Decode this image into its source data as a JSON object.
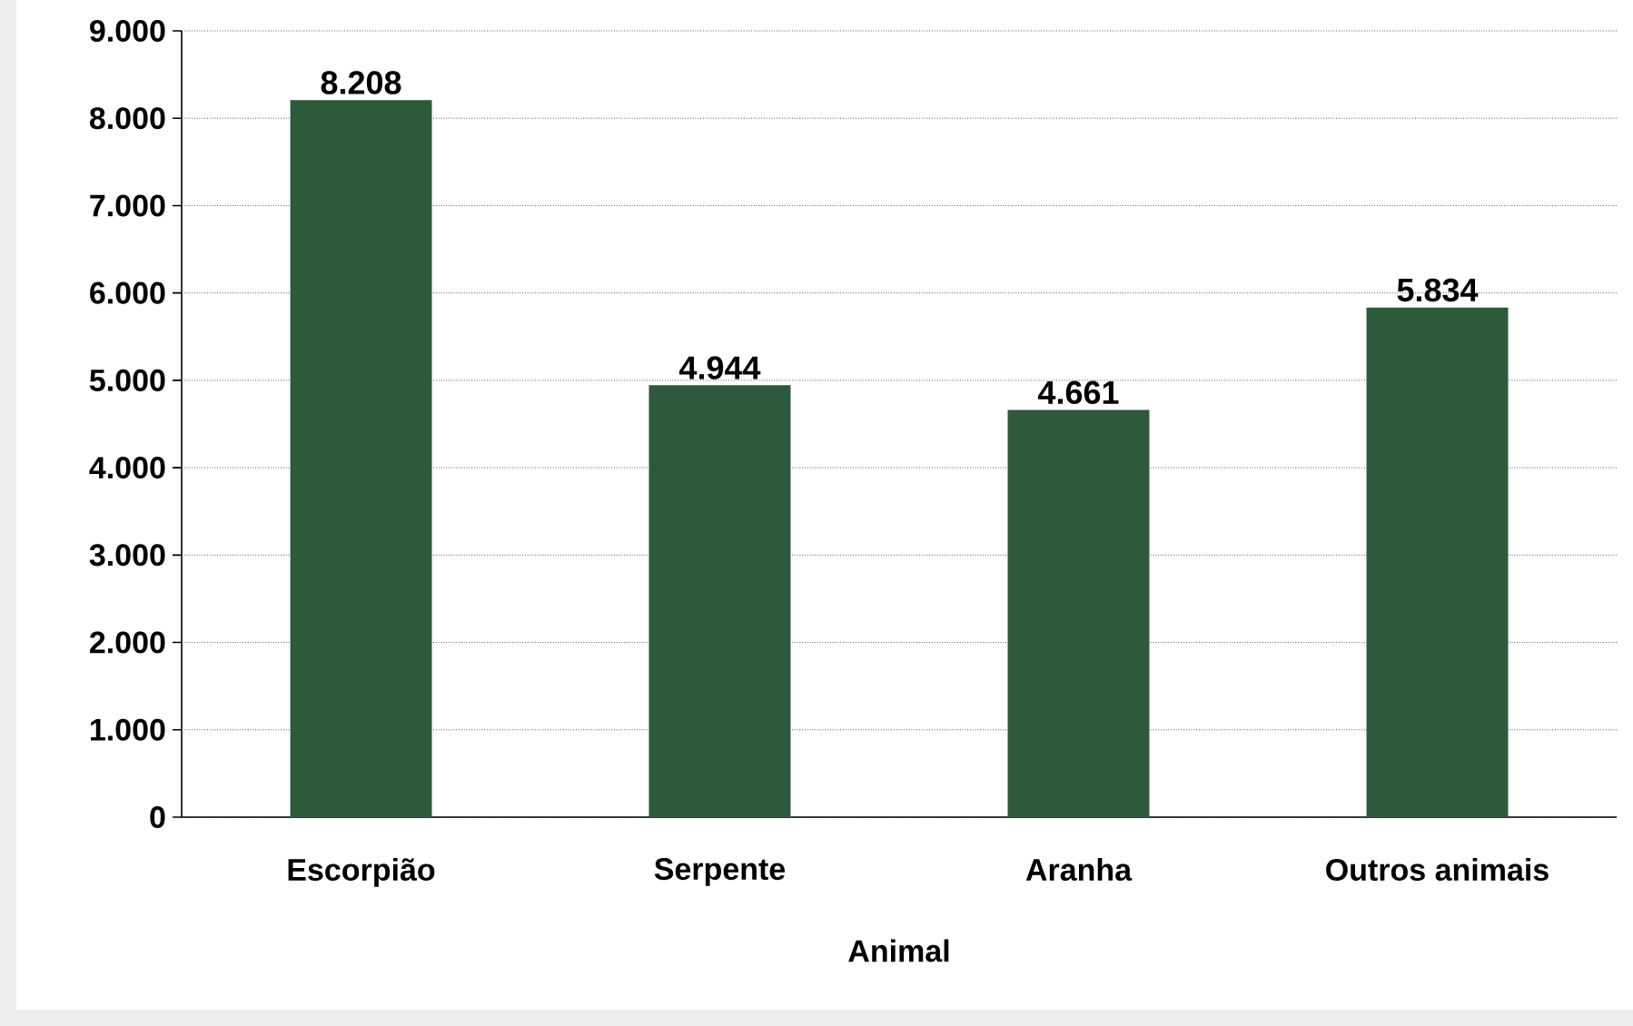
{
  "chart_data": {
    "type": "bar",
    "xlabel": "Animal",
    "categories": [
      "Escorpião",
      "Serpente",
      "Aranha",
      "Outros animais"
    ],
    "values": [
      8208,
      4944,
      4661,
      5834
    ],
    "value_labels": [
      "8.208",
      "4.944",
      "4.661",
      "5.834"
    ],
    "color": "#2e5a3c",
    "ylim": [
      0,
      9000
    ],
    "yticks": [
      0,
      {
        "value": 1000,
        "label": "1.000"
      },
      {
        "value": 2000,
        "label": "2.000"
      },
      {
        "value": 3000,
        "label": "3.000"
      },
      {
        "value": 4000,
        "label": "4.000"
      },
      {
        "value": 5000,
        "label": "5.000"
      },
      {
        "value": 6000,
        "label": "6.000"
      },
      {
        "value": 7000,
        "label": "7.000"
      },
      {
        "value": 8000,
        "label": "8.000"
      },
      {
        "value": 9000,
        "label": "9.000"
      }
    ],
    "grid": "y"
  }
}
